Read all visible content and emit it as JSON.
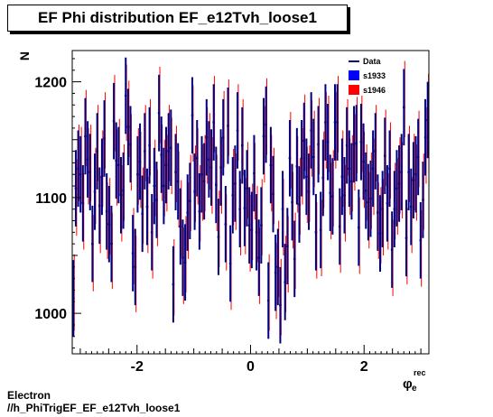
{
  "chart_data": {
    "type": "scatter",
    "title": "EF Phi distribution EF_e12Tvh_loose1",
    "xlabel_main": "φ",
    "xlabel_sup": "rec",
    "xlabel_sub": "e",
    "ylabel": "N",
    "xlim": [
      -3.1416,
      3.1416
    ],
    "ylim": [
      965,
      1227
    ],
    "xticks": [
      -2,
      0,
      2
    ],
    "xtick_labels": [
      "-2",
      "0",
      "2"
    ],
    "yticks": [
      1000,
      1100,
      1200
    ],
    "ytick_labels": [
      "1000",
      "1100",
      "1200"
    ],
    "legend": {
      "placement": "top-right",
      "entries": [
        {
          "label": "Data",
          "color": "#000080",
          "style": "line"
        },
        {
          "label": "s1933",
          "color": "#0000ff",
          "style": "box"
        },
        {
          "label": "s1946",
          "color": "#ff0000",
          "style": "box"
        }
      ]
    },
    "error": 33,
    "series": [
      {
        "name": "Data",
        "color": "#000080",
        "values": [
          1013,
          1108,
          1125,
          1120,
          1095,
          1153,
          1133,
          1122,
          1060,
          1105,
          1140,
          1093,
          1118,
          1151,
          1088,
          1077,
          1060,
          1166,
          1132,
          1128,
          1102,
          1106,
          1188,
          1161,
          1146,
          1052,
          1040,
          1120,
          1131,
          1086,
          1140,
          1092,
          1145,
          1070,
          1110,
          1098,
          1173,
          1137,
          1110,
          1128,
          1140,
          1143,
          1025,
          1122,
          1114,
          1075,
          1048,
          1044,
          1087,
          1097,
          1171,
          1105,
          1134,
          1088,
          1120,
          1114,
          1152,
          1133,
          1126,
          1165,
          1111,
          1066,
          1126,
          1152,
          1077,
          1162,
          1043,
          1102,
          1112,
          1158,
          1090,
          1145,
          1091,
          1108,
          1076,
          1072,
          1121,
          1070,
          1048,
          1076,
          1153,
          1163,
          1011,
          1128,
          1103,
          1035,
          1040,
          1007,
          1090,
          1027,
          1058,
          1134,
          1096,
          1047,
          1127,
          1094,
          1134,
          1149,
          1118,
          1105,
          1158,
          1135,
          1070,
          1146,
          1072,
          1117,
          1165,
          1148,
          1104,
          1101,
          1165,
          1165,
          1075,
          1118,
          1102,
          1145,
          1125,
          1114,
          1146,
          1147,
          1074,
          1148,
          1131,
          1106,
          1096,
          1099,
          1125,
          1140,
          1087,
          1069,
          1090,
          1136,
          1095,
          1125,
          1055,
          1090,
          1108,
          1112,
          1122,
          1178,
          1065,
          1122,
          1092,
          1115,
          1120,
          1135,
          1063,
          1098,
          1152,
          1167
        ]
      },
      {
        "name": "s1946",
        "color": "#ff0000",
        "values": [
          1018,
          1100,
          1130,
          1128,
          1088,
          1160,
          1127,
          1130,
          1052,
          1110,
          1147,
          1085,
          1125,
          1158,
          1080,
          1084,
          1054,
          1173,
          1126,
          1135,
          1095,
          1113,
          1182,
          1168,
          1139,
          1058,
          1034,
          1127,
          1124,
          1093,
          1147,
          1085,
          1152,
          1063,
          1117,
          1091,
          1180,
          1130,
          1117,
          1121,
          1147,
          1136,
          1031,
          1129,
          1107,
          1082,
          1041,
          1051,
          1080,
          1104,
          1164,
          1112,
          1127,
          1095,
          1113,
          1121,
          1145,
          1140,
          1119,
          1172,
          1104,
          1073,
          1119,
          1159,
          1070,
          1169,
          1036,
          1109,
          1105,
          1165,
          1083,
          1152,
          1084,
          1115,
          1069,
          1079,
          1114,
          1077,
          1041,
          1083,
          1146,
          1170,
          1018,
          1121,
          1110,
          1028,
          1047,
          1014,
          1083,
          1034,
          1051,
          1141,
          1089,
          1054,
          1120,
          1101,
          1127,
          1156,
          1111,
          1112,
          1151,
          1142,
          1063,
          1153,
          1065,
          1124,
          1158,
          1155,
          1097,
          1108,
          1158,
          1172,
          1068,
          1125,
          1095,
          1152,
          1118,
          1121,
          1139,
          1154,
          1067,
          1155,
          1124,
          1113,
          1089,
          1106,
          1118,
          1147,
          1080,
          1076,
          1083,
          1143,
          1088,
          1132,
          1048,
          1097,
          1101,
          1119,
          1115,
          1185,
          1058,
          1129,
          1085,
          1122,
          1113,
          1142,
          1056,
          1105,
          1145,
          1174
        ]
      }
    ]
  },
  "footer": {
    "line1": "Electron",
    "line2": "//h_PhiTrigEF_EF_e12Tvh_loose1"
  }
}
